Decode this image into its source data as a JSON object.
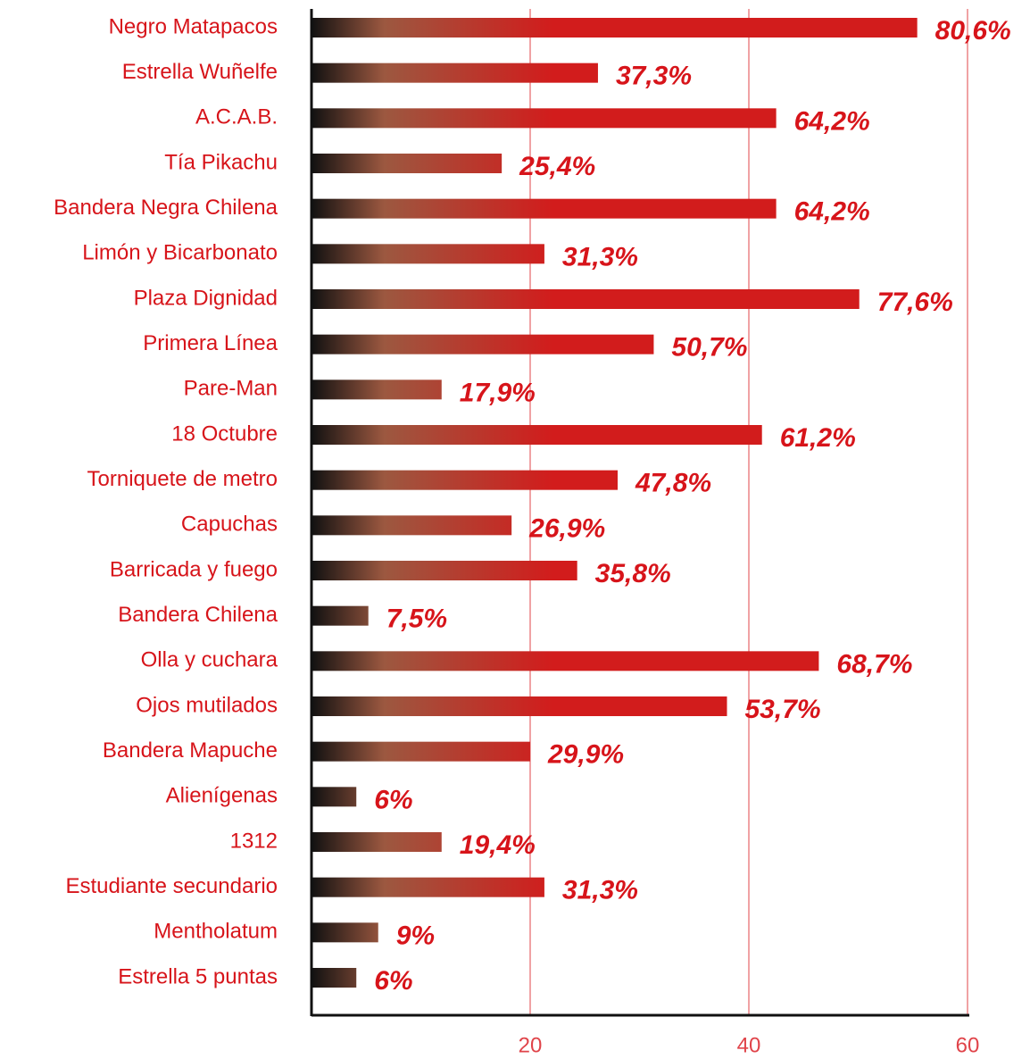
{
  "chart_data": {
    "type": "barh",
    "categories": [
      "Negro Matapacos",
      "Estrella Wuñelfe",
      "A.C.A.B.",
      "Tía Pikachu",
      "Bandera Negra Chilena",
      "Limón y Bicarbonato",
      "Plaza Dignidad",
      "Primera Línea",
      "Pare-Man",
      "18 Octubre",
      "Torniquete de metro",
      "Capuchas",
      "Barricada y fuego",
      "Bandera Chilena",
      "Olla y cuchara",
      "Ojos mutilados",
      "Bandera Mapuche",
      "Alienígenas",
      "1312",
      "Estudiante secundario",
      "Mentholatum",
      "Estrella 5 puntas"
    ],
    "values": [
      55.4,
      26.2,
      42.5,
      17.4,
      42.5,
      21.3,
      50.1,
      31.3,
      11.9,
      41.2,
      28,
      18.3,
      24.3,
      5.2,
      46.4,
      38,
      20,
      4.1,
      11.9,
      21.3,
      6.1,
      4.1
    ],
    "data_labels": [
      "80,6%",
      "37,3%",
      "64,2%",
      "25,4%",
      "64,2%",
      "31,3%",
      "77,6%",
      "50,7%",
      "17,9%",
      "61,2%",
      "47,8%",
      "26,9%",
      "35,8%",
      "7,5%",
      "68,7%",
      "53,7%",
      "29,9%",
      "6%",
      "19,4%",
      "31,3%",
      "9%",
      "6%"
    ],
    "color": "#d21c1c",
    "xlim": [
      0,
      60
    ],
    "xticks": [
      20,
      40,
      60
    ],
    "grid": true
  }
}
